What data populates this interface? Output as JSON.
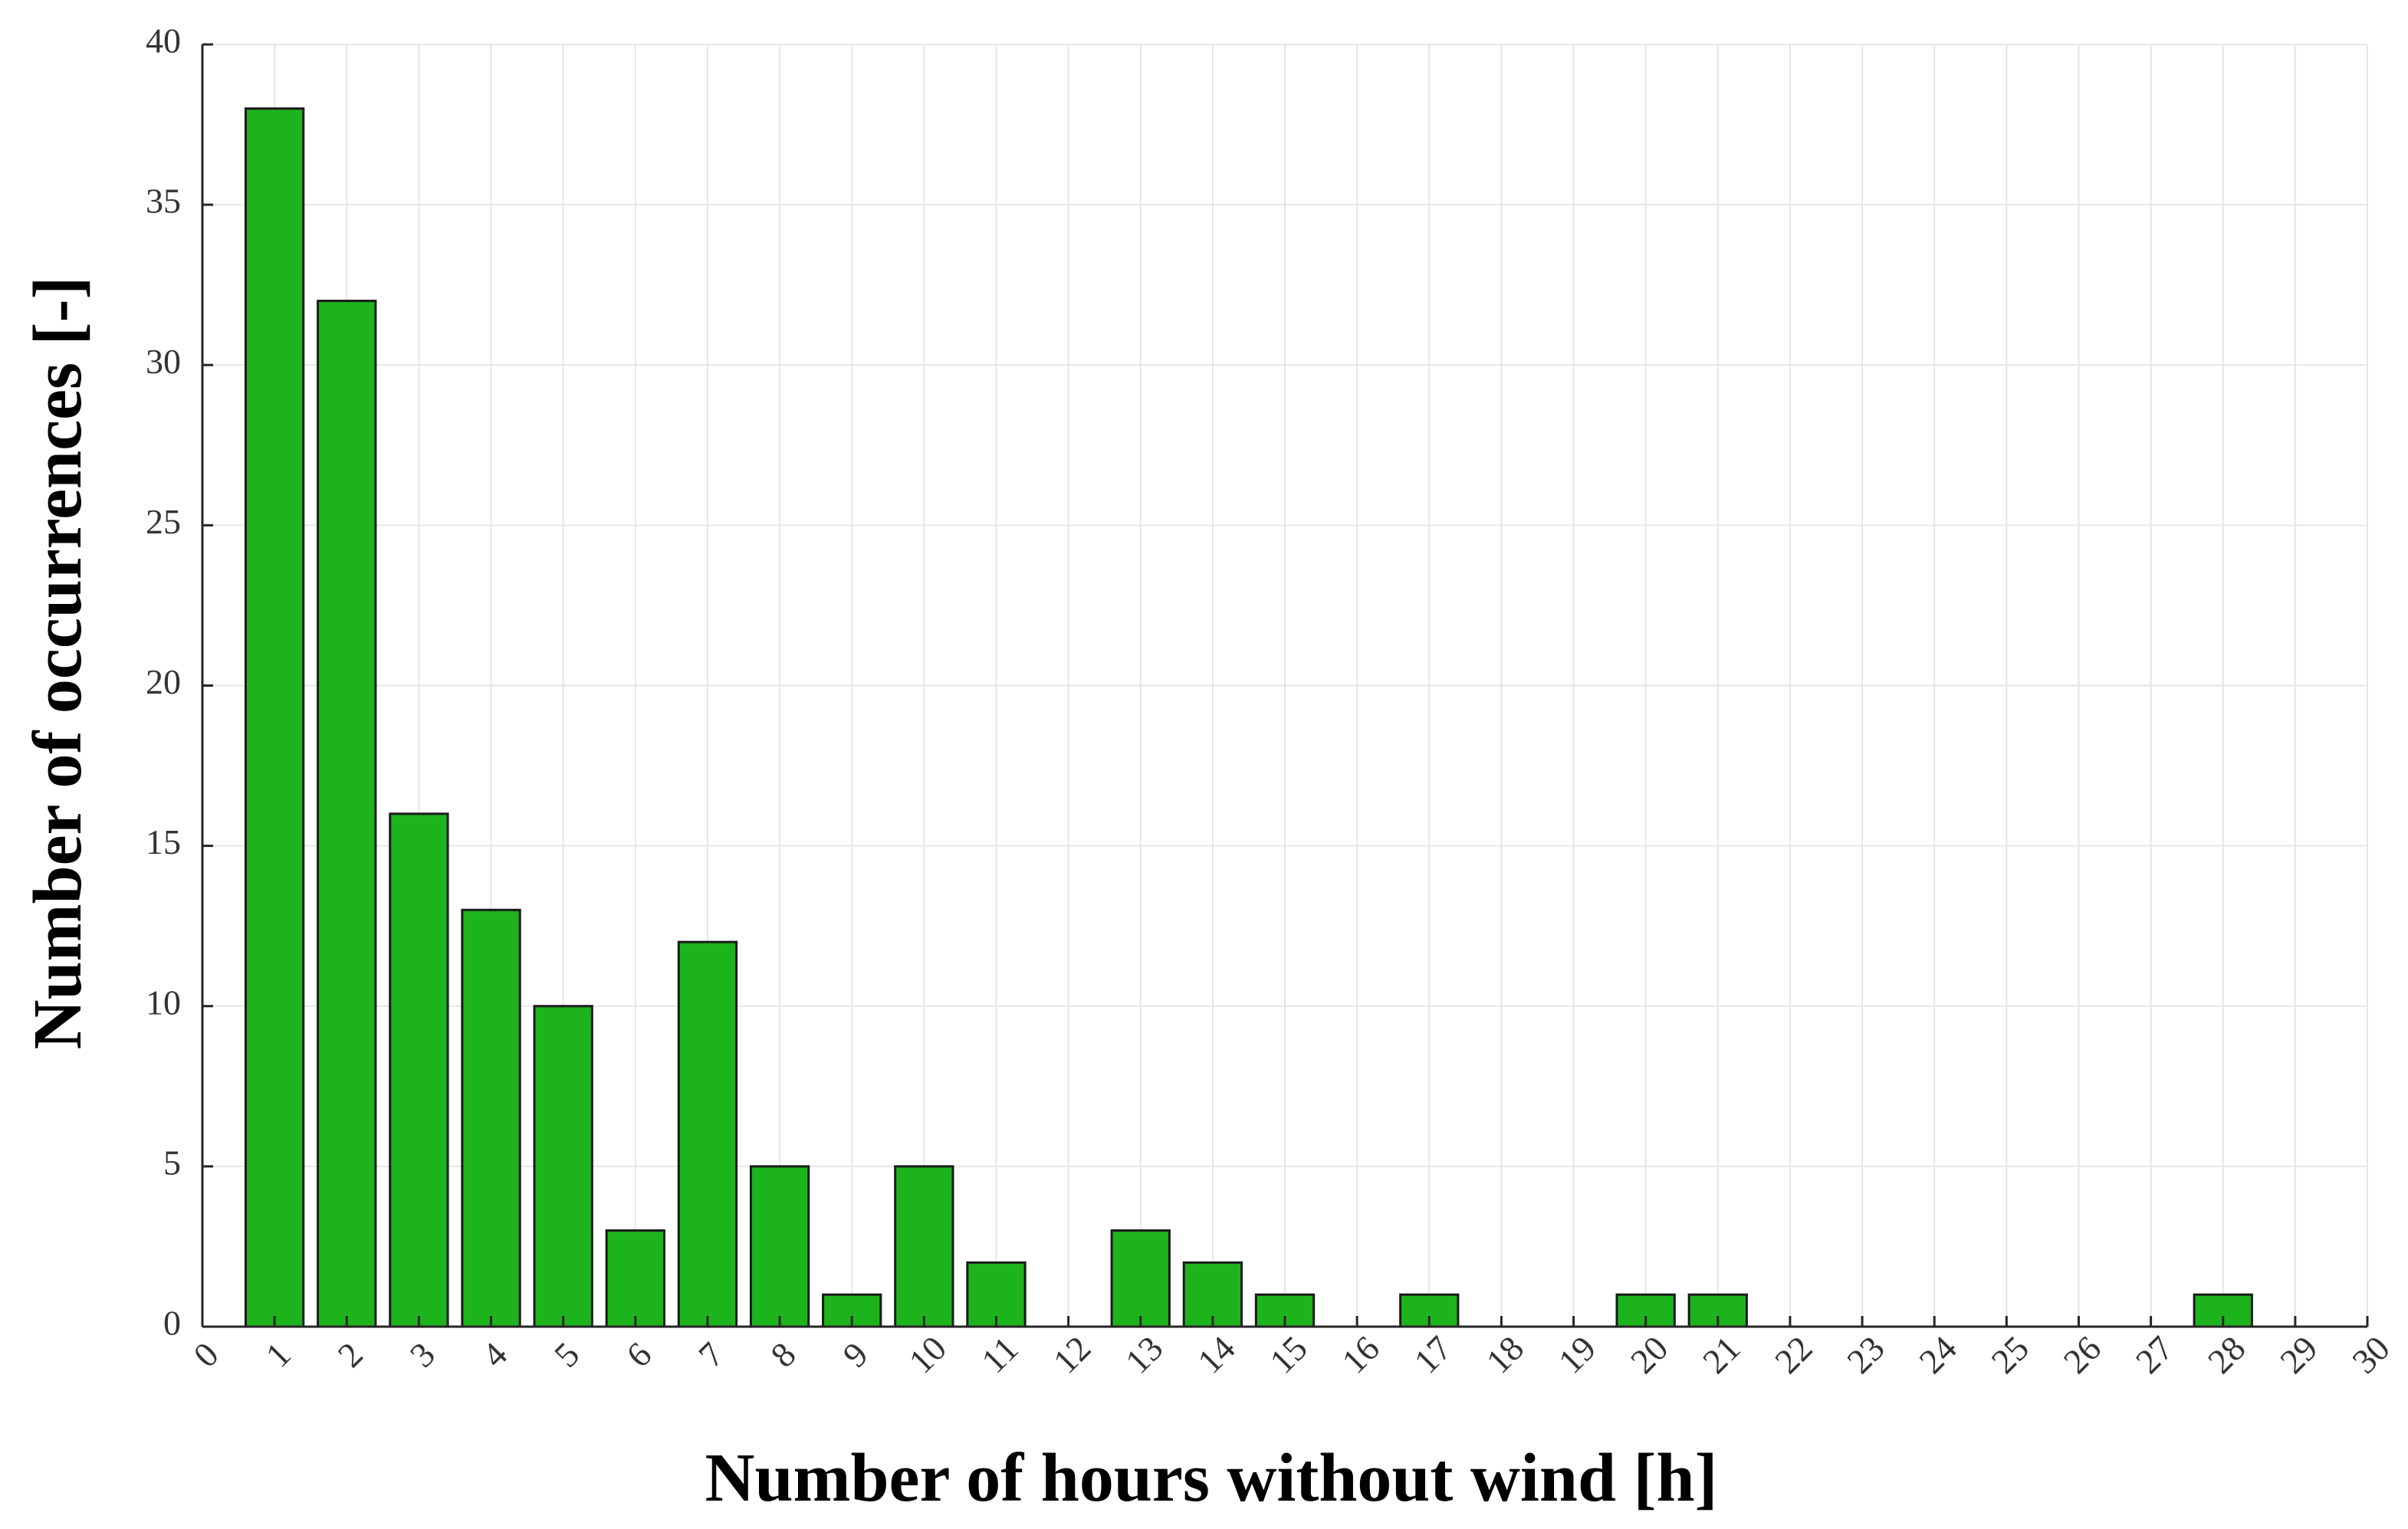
{
  "chart_data": {
    "type": "bar",
    "title": "",
    "xlabel": "Number of hours without wind [h]",
    "ylabel": "Number of occurrences [-]",
    "x": [
      1,
      2,
      3,
      4,
      5,
      6,
      7,
      8,
      9,
      10,
      11,
      13,
      14,
      15,
      17,
      20,
      21,
      28
    ],
    "values": [
      38,
      32,
      16,
      13,
      10,
      3,
      12,
      5,
      1,
      5,
      2,
      3,
      2,
      1,
      1,
      1,
      1,
      1
    ],
    "xlim": [
      0,
      30
    ],
    "ylim": [
      0,
      40
    ],
    "xticks": [
      0,
      1,
      2,
      3,
      4,
      5,
      6,
      7,
      8,
      9,
      10,
      11,
      12,
      13,
      14,
      15,
      16,
      17,
      18,
      19,
      20,
      21,
      22,
      23,
      24,
      25,
      26,
      27,
      28,
      29,
      30
    ],
    "yticks": [
      0,
      5,
      10,
      15,
      20,
      25,
      30,
      35,
      40
    ],
    "grid": true,
    "bar_color": "#1db31d"
  }
}
